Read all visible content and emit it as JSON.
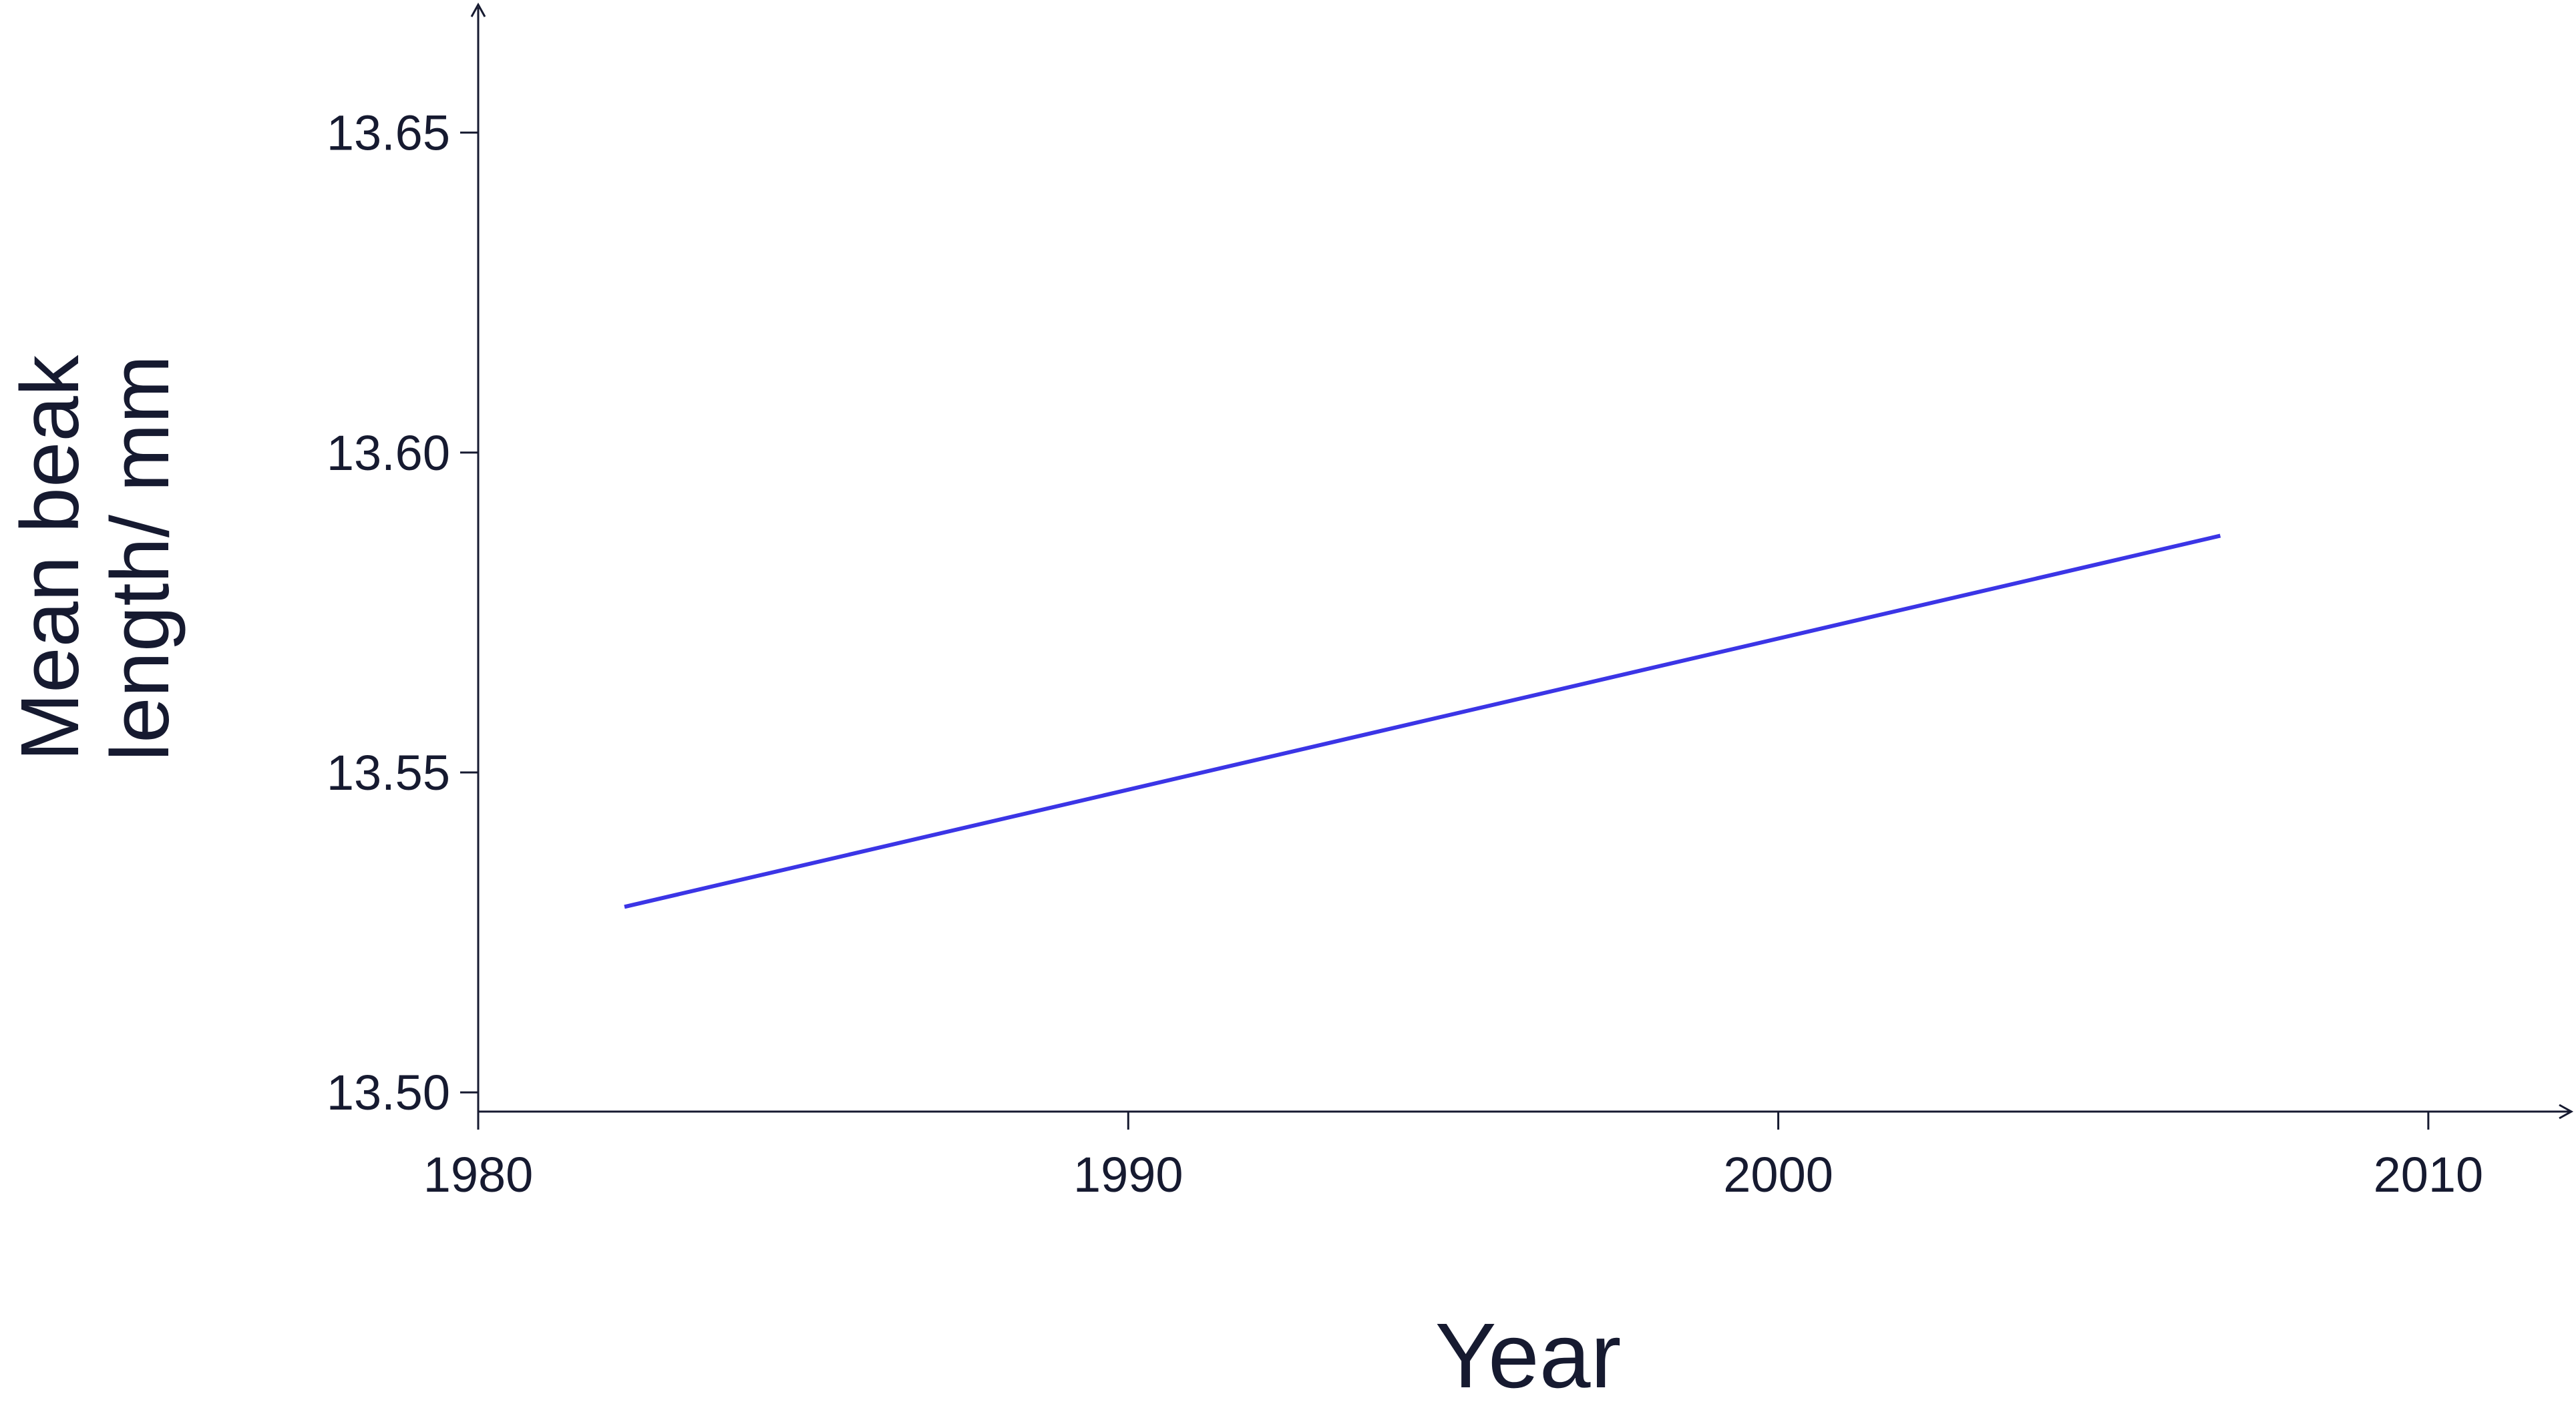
{
  "chart_data": {
    "type": "line",
    "xlabel": "Year",
    "ylabel": "Mean beak length/ mm",
    "x": [
      1982.25,
      2006.8
    ],
    "series": [
      {
        "color": "#3b35e6",
        "values": [
          13.529,
          13.587
        ]
      }
    ],
    "xlim": [
      1980,
      2012.2
    ],
    "ylim": [
      13.497,
      13.67
    ],
    "xticks": [
      1980,
      1990,
      2000,
      2010
    ],
    "yticks": [
      {
        "value": 13.5,
        "label": "13.50"
      },
      13.55,
      {
        "value": 13.6,
        "label": "13.60"
      },
      13.65
    ],
    "grid": false
  }
}
